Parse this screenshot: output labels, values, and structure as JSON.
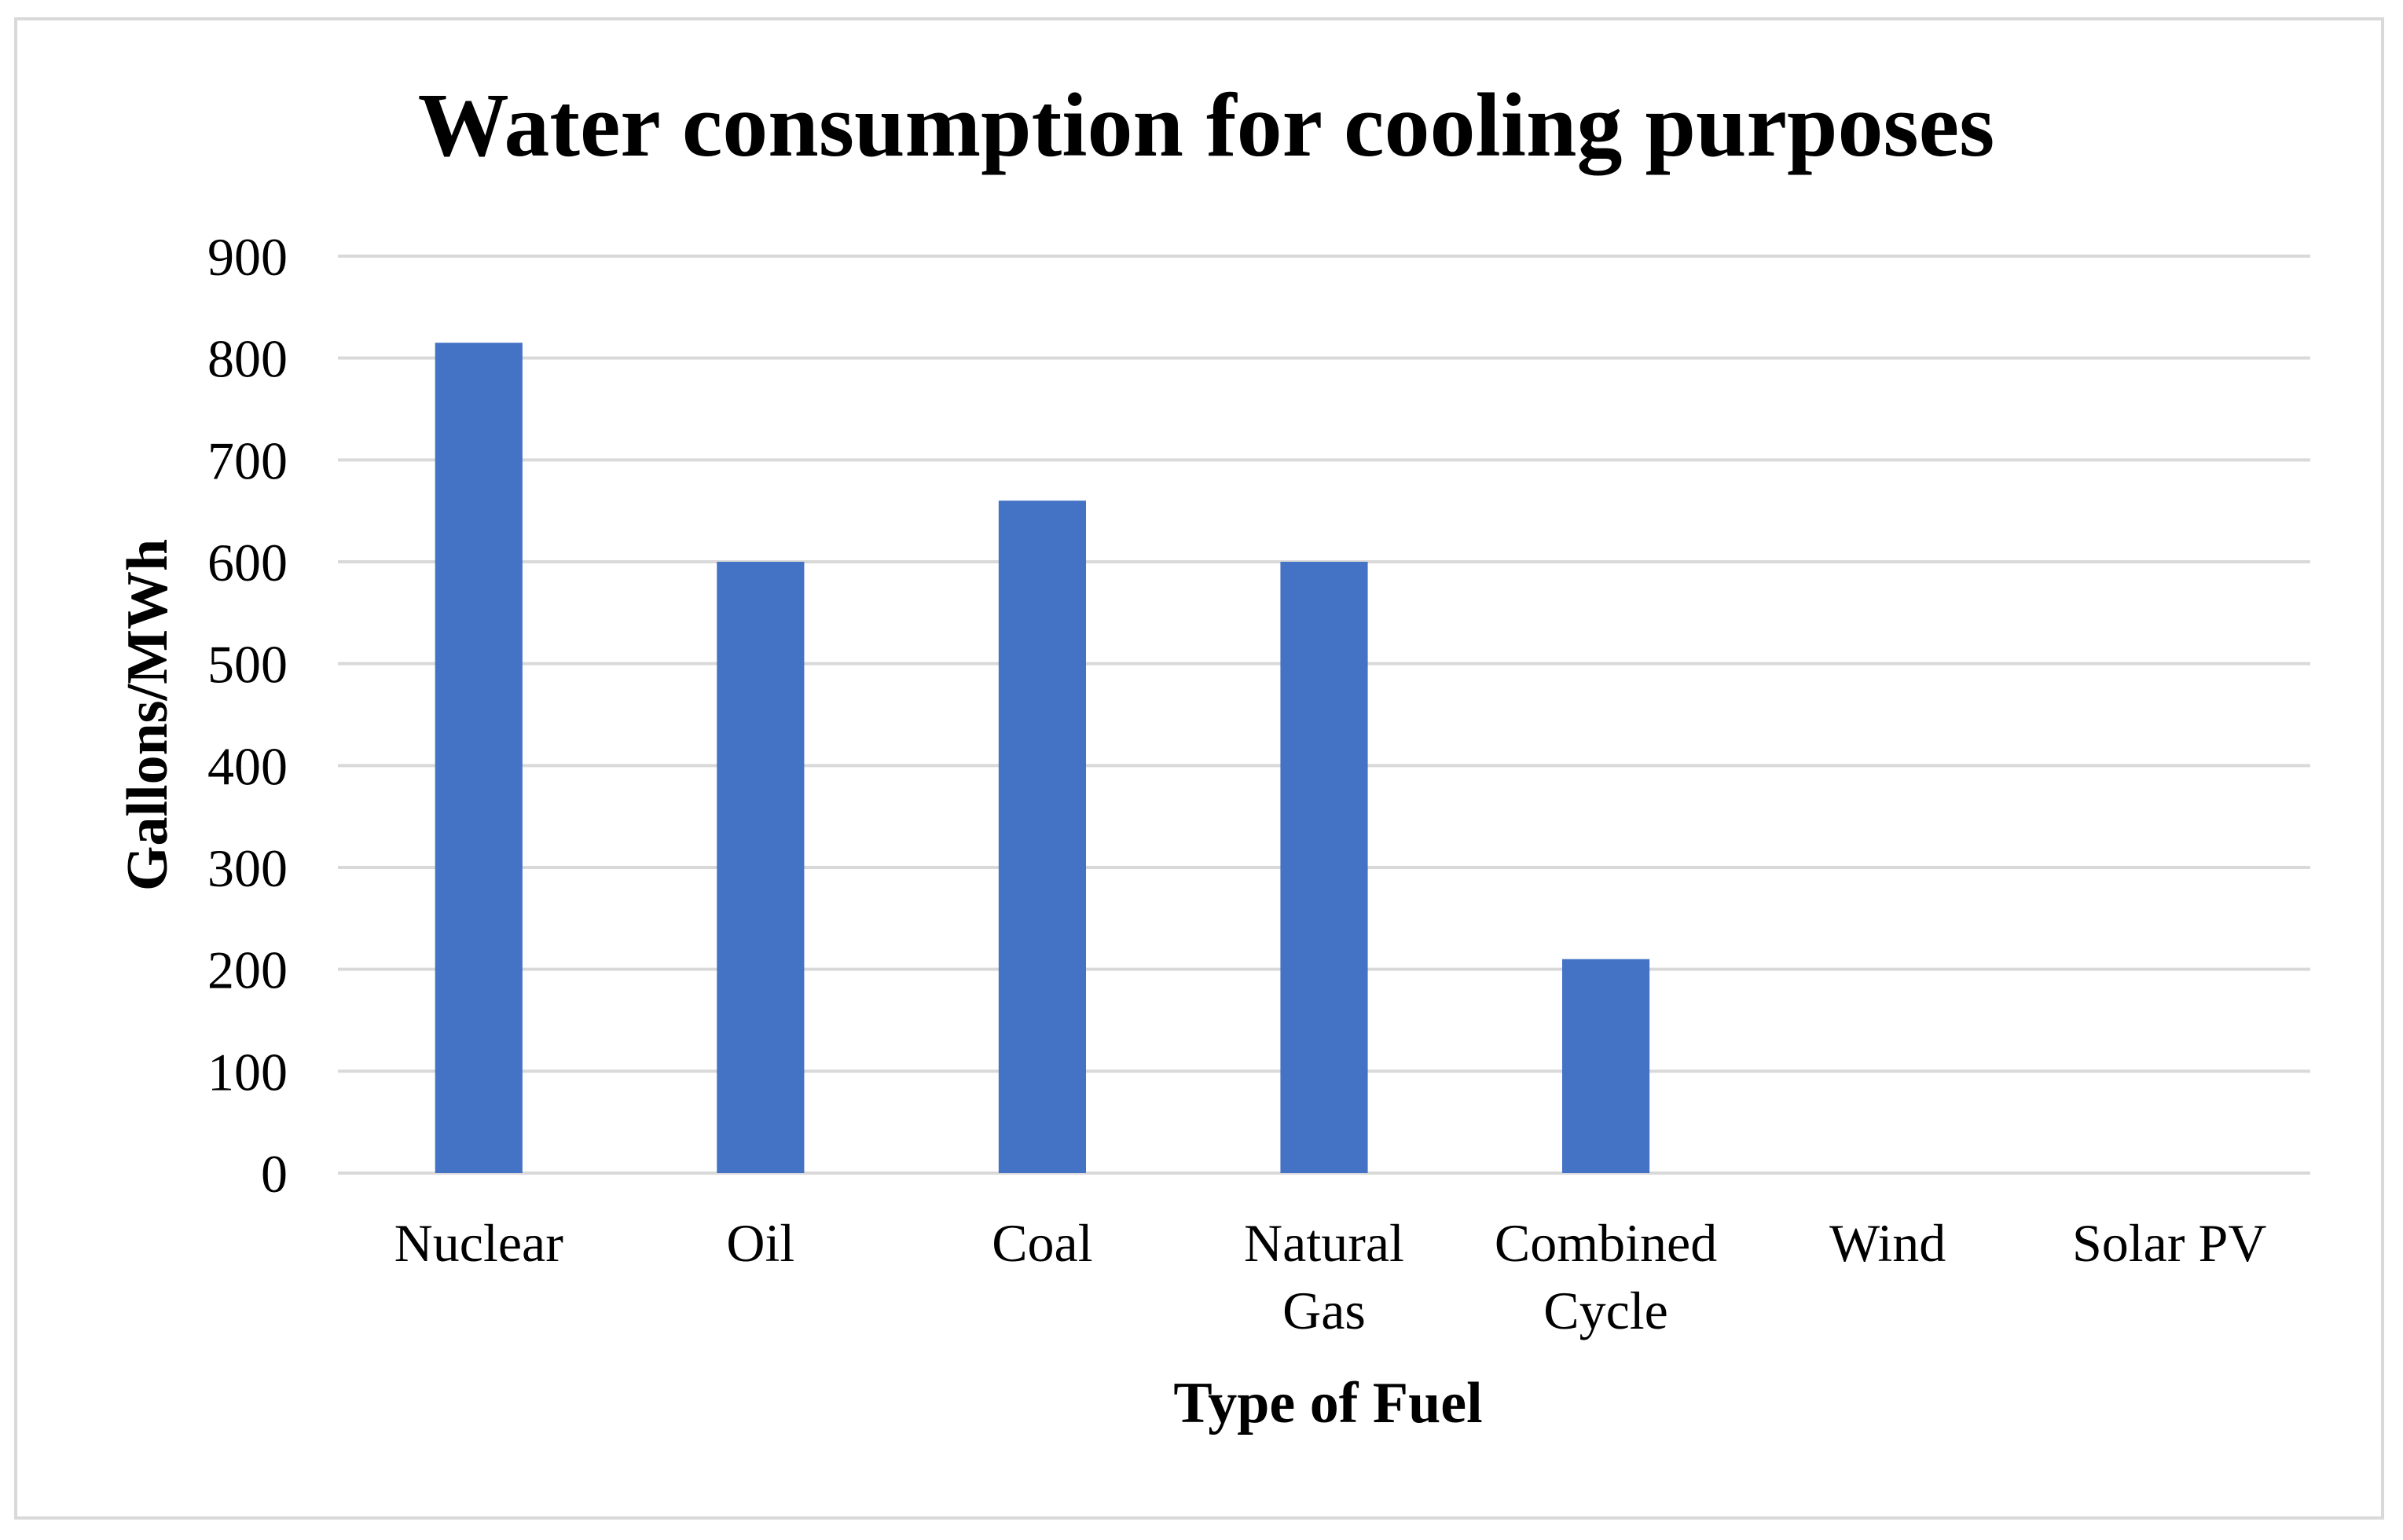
{
  "chart_data": {
    "type": "bar",
    "title": "Water consumption for cooling purposes",
    "xlabel": "Type of Fuel",
    "ylabel": "Gallons/MWh",
    "categories": [
      [
        "Nuclear"
      ],
      [
        "Oil"
      ],
      [
        "Coal"
      ],
      [
        "Natural",
        "Gas"
      ],
      [
        "Combined",
        "Cycle"
      ],
      [
        "Wind"
      ],
      [
        "Solar PV"
      ]
    ],
    "values": [
      815,
      600,
      660,
      600,
      210,
      0,
      0
    ],
    "ylim": [
      0,
      900
    ],
    "yticks": [
      "0",
      "100",
      "200",
      "300",
      "400",
      "500",
      "600",
      "700",
      "800",
      "900"
    ],
    "grid": true,
    "bar_color": "#4472c4"
  }
}
